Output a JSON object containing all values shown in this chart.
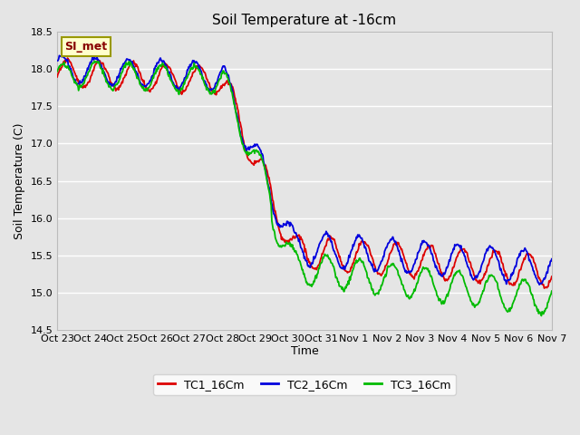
{
  "title": "Soil Temperature at -16cm",
  "xlabel": "Time",
  "ylabel": "Soil Temperature (C)",
  "ylim": [
    14.5,
    18.5
  ],
  "xlim": [
    0,
    15
  ],
  "figsize": [
    6.4,
    4.8
  ],
  "dpi": 100,
  "background_color": "#e5e5e5",
  "plot_bg_color": "#e5e5e5",
  "grid_color": "#ffffff",
  "colors": {
    "TC1": "#dd0000",
    "TC2": "#0000dd",
    "TC3": "#00bb00"
  },
  "legend_labels": [
    "TC1_16Cm",
    "TC2_16Cm",
    "TC3_16Cm"
  ],
  "xtick_labels": [
    "Oct 23",
    "Oct 24",
    "Oct 25",
    "Oct 26",
    "Oct 27",
    "Oct 28",
    "Oct 29",
    "Oct 30",
    "Oct 31",
    "Nov 1",
    "Nov 2",
    "Nov 3",
    "Nov 4",
    "Nov 5",
    "Nov 6",
    "Nov 7"
  ],
  "annotation": "SI_met",
  "annotation_bbox": {
    "facecolor": "#ffffcc",
    "edgecolor": "#999900"
  },
  "title_fontsize": 11,
  "axis_fontsize": 9,
  "tick_fontsize": 8,
  "legend_fontsize": 9,
  "linewidth": 1.3
}
